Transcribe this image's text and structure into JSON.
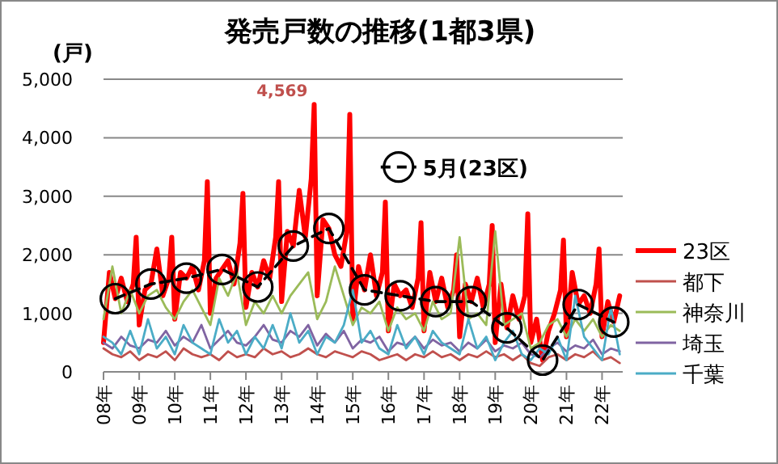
{
  "chart_data": {
    "type": "line",
    "title": "発売戸数の推移(1都3県)",
    "ylabel": "(戸)",
    "xlim": [
      "2008-01",
      "2022-08"
    ],
    "ylim": [
      0,
      5000
    ],
    "yticks": [
      {
        "value": 0,
        "label": "0"
      },
      {
        "value": 1000,
        "label": "1,000"
      },
      {
        "value": 2000,
        "label": "2,000"
      },
      {
        "value": 3000,
        "label": "3,000"
      },
      {
        "value": 4000,
        "label": "4,000"
      },
      {
        "value": 5000,
        "label": "5,000"
      }
    ],
    "xticks": [
      {
        "value": "2008-01",
        "label": "08年"
      },
      {
        "value": "2009-01",
        "label": "09年"
      },
      {
        "value": "2010-01",
        "label": "10年"
      },
      {
        "value": "2011-01",
        "label": "11年"
      },
      {
        "value": "2012-01",
        "label": "12年"
      },
      {
        "value": "2013-01",
        "label": "13年"
      },
      {
        "value": "2014-01",
        "label": "14年"
      },
      {
        "value": "2015-01",
        "label": "15年"
      },
      {
        "value": "2016-01",
        "label": "16年"
      },
      {
        "value": "2017-01",
        "label": "17年"
      },
      {
        "value": "2018-01",
        "label": "18年"
      },
      {
        "value": "2019-01",
        "label": "19年"
      },
      {
        "value": "2020-01",
        "label": "20年"
      },
      {
        "value": "2021-01",
        "label": "21年"
      },
      {
        "value": "2022-01",
        "label": "22年"
      }
    ],
    "grid": "y",
    "legend": "right",
    "series": [
      {
        "name": "23区",
        "color": "#ff0000",
        "x": [
          "2008-01",
          "2008-03",
          "2008-05",
          "2008-07",
          "2008-09",
          "2008-11",
          "2008-12",
          "2009-01",
          "2009-03",
          "2009-05",
          "2009-07",
          "2009-09",
          "2009-11",
          "2009-12",
          "2010-01",
          "2010-03",
          "2010-05",
          "2010-07",
          "2010-09",
          "2010-11",
          "2010-12",
          "2011-01",
          "2011-03",
          "2011-05",
          "2011-07",
          "2011-09",
          "2011-11",
          "2011-12",
          "2012-01",
          "2012-03",
          "2012-05",
          "2012-07",
          "2012-09",
          "2012-11",
          "2012-12",
          "2013-01",
          "2013-03",
          "2013-05",
          "2013-07",
          "2013-09",
          "2013-11",
          "2013-12",
          "2014-01",
          "2014-03",
          "2014-05",
          "2014-07",
          "2014-09",
          "2014-11",
          "2014-12",
          "2015-01",
          "2015-03",
          "2015-05",
          "2015-07",
          "2015-09",
          "2015-11",
          "2015-12",
          "2016-01",
          "2016-03",
          "2016-05",
          "2016-07",
          "2016-09",
          "2016-11",
          "2016-12",
          "2017-01",
          "2017-03",
          "2017-05",
          "2017-07",
          "2017-09",
          "2017-11",
          "2017-12",
          "2018-01",
          "2018-03",
          "2018-05",
          "2018-07",
          "2018-09",
          "2018-11",
          "2018-12",
          "2019-01",
          "2019-03",
          "2019-05",
          "2019-07",
          "2019-09",
          "2019-11",
          "2019-12",
          "2020-01",
          "2020-03",
          "2020-05",
          "2020-07",
          "2020-09",
          "2020-11",
          "2020-12",
          "2021-01",
          "2021-03",
          "2021-05",
          "2021-07",
          "2021-09",
          "2021-11",
          "2021-12",
          "2022-01",
          "2022-03",
          "2022-05",
          "2022-07"
        ],
        "values": [
          500,
          1700,
          1250,
          1600,
          1200,
          1500,
          2300,
          800,
          1400,
          1500,
          2100,
          1300,
          1600,
          2300,
          900,
          1700,
          1600,
          1800,
          1400,
          1900,
          3250,
          1000,
          1600,
          1750,
          1900,
          1500,
          2200,
          3050,
          1100,
          1700,
          1450,
          1900,
          1600,
          2300,
          3250,
          1200,
          2400,
          2150,
          3100,
          2300,
          3300,
          4569,
          1300,
          2600,
          2450,
          2000,
          1800,
          2400,
          4400,
          900,
          1800,
          1400,
          2000,
          1300,
          1700,
          2900,
          700,
          1500,
          1300,
          1400,
          1100,
          1600,
          2550,
          700,
          1700,
          1200,
          1600,
          1100,
          1400,
          2000,
          600,
          1500,
          1200,
          1600,
          1100,
          1500,
          2500,
          500,
          1500,
          750,
          1300,
          900,
          1300,
          2700,
          500,
          900,
          200,
          700,
          1000,
          1400,
          2250,
          600,
          1700,
          1150,
          1300,
          1000,
          1500,
          2100,
          600,
          1200,
          850,
          1300
        ],
        "value_labels": [
          null,
          null,
          null,
          null,
          null,
          null,
          null,
          null,
          null,
          null,
          null,
          null,
          null,
          null,
          null,
          null,
          null,
          null,
          null,
          null,
          null,
          null,
          null,
          null,
          null,
          null,
          null,
          null,
          null,
          null,
          null,
          null,
          null,
          null,
          null,
          null,
          null,
          null,
          null,
          null,
          null,
          "4,569",
          null,
          null,
          null,
          null,
          null,
          null,
          null,
          null,
          null,
          null,
          null,
          null,
          null,
          null,
          null,
          null,
          null,
          null,
          null,
          null,
          null,
          null,
          null,
          null,
          null,
          null,
          null,
          null,
          null,
          null,
          null,
          null,
          null,
          null,
          null,
          null,
          null,
          null,
          null,
          null,
          null,
          null,
          null,
          null,
          null,
          null,
          null,
          null,
          null,
          null,
          null,
          null,
          null,
          null,
          null,
          null,
          null,
          null,
          null,
          null
        ]
      },
      {
        "name": "都下",
        "color": "#c0504d",
        "x": [
          "2008-01",
          "2008-04",
          "2008-07",
          "2008-10",
          "2009-01",
          "2009-04",
          "2009-07",
          "2009-10",
          "2010-01",
          "2010-04",
          "2010-07",
          "2010-10",
          "2011-01",
          "2011-04",
          "2011-07",
          "2011-10",
          "2012-01",
          "2012-04",
          "2012-07",
          "2012-10",
          "2013-01",
          "2013-04",
          "2013-07",
          "2013-10",
          "2014-01",
          "2014-04",
          "2014-07",
          "2014-10",
          "2015-01",
          "2015-04",
          "2015-07",
          "2015-10",
          "2016-01",
          "2016-04",
          "2016-07",
          "2016-10",
          "2017-01",
          "2017-04",
          "2017-07",
          "2017-10",
          "2018-01",
          "2018-04",
          "2018-07",
          "2018-10",
          "2019-01",
          "2019-04",
          "2019-07",
          "2019-10",
          "2020-01",
          "2020-04",
          "2020-07",
          "2020-10",
          "2021-01",
          "2021-04",
          "2021-07",
          "2021-10",
          "2022-01",
          "2022-04",
          "2022-07"
        ],
        "values": [
          400,
          300,
          250,
          350,
          200,
          300,
          250,
          350,
          200,
          400,
          300,
          250,
          300,
          200,
          350,
          250,
          300,
          250,
          400,
          300,
          350,
          250,
          300,
          400,
          300,
          250,
          350,
          300,
          250,
          350,
          300,
          200,
          250,
          300,
          200,
          300,
          250,
          350,
          250,
          300,
          200,
          300,
          250,
          350,
          250,
          300,
          200,
          300,
          150,
          100,
          250,
          300,
          200,
          300,
          250,
          350,
          200,
          250,
          150
        ]
      },
      {
        "name": "神奈川",
        "color": "#9bbb59",
        "x": [
          "2008-01",
          "2008-04",
          "2008-07",
          "2008-10",
          "2009-01",
          "2009-04",
          "2009-07",
          "2009-10",
          "2010-01",
          "2010-04",
          "2010-07",
          "2010-10",
          "2011-01",
          "2011-04",
          "2011-07",
          "2011-10",
          "2012-01",
          "2012-04",
          "2012-07",
          "2012-10",
          "2013-01",
          "2013-04",
          "2013-07",
          "2013-10",
          "2014-01",
          "2014-04",
          "2014-07",
          "2014-10",
          "2015-01",
          "2015-04",
          "2015-07",
          "2015-10",
          "2016-01",
          "2016-04",
          "2016-07",
          "2016-10",
          "2017-01",
          "2017-04",
          "2017-07",
          "2017-10",
          "2018-01",
          "2018-04",
          "2018-07",
          "2018-10",
          "2019-01",
          "2019-04",
          "2019-07",
          "2019-10",
          "2020-01",
          "2020-04",
          "2020-07",
          "2020-10",
          "2021-01",
          "2021-04",
          "2021-07",
          "2021-10",
          "2022-01",
          "2022-04",
          "2022-07"
        ],
        "values": [
          900,
          1800,
          1000,
          1400,
          1000,
          1300,
          1400,
          1100,
          900,
          1200,
          1400,
          1100,
          800,
          1600,
          1300,
          1700,
          800,
          1200,
          1000,
          1300,
          1000,
          1300,
          1500,
          1700,
          900,
          1200,
          1800,
          1300,
          800,
          1100,
          1000,
          1200,
          700,
          1100,
          900,
          1000,
          700,
          1200,
          900,
          1000,
          2300,
          900,
          1000,
          800,
          2400,
          800,
          900,
          1000,
          400,
          500,
          800,
          900,
          600,
          900,
          700,
          900,
          600,
          800,
          700
        ]
      },
      {
        "name": "埼玉",
        "color": "#8064a2",
        "x": [
          "2008-01",
          "2008-04",
          "2008-07",
          "2008-10",
          "2009-01",
          "2009-04",
          "2009-07",
          "2009-10",
          "2010-01",
          "2010-04",
          "2010-07",
          "2010-10",
          "2011-01",
          "2011-04",
          "2011-07",
          "2011-10",
          "2012-01",
          "2012-04",
          "2012-07",
          "2012-10",
          "2013-01",
          "2013-04",
          "2013-07",
          "2013-10",
          "2014-01",
          "2014-04",
          "2014-07",
          "2014-10",
          "2015-01",
          "2015-04",
          "2015-07",
          "2015-10",
          "2016-01",
          "2016-04",
          "2016-07",
          "2016-10",
          "2017-01",
          "2017-04",
          "2017-07",
          "2017-10",
          "2018-01",
          "2018-04",
          "2018-07",
          "2018-10",
          "2019-01",
          "2019-04",
          "2019-07",
          "2019-10",
          "2020-01",
          "2020-04",
          "2020-07",
          "2020-10",
          "2021-01",
          "2021-04",
          "2021-07",
          "2021-10",
          "2022-01",
          "2022-04",
          "2022-07"
        ],
        "values": [
          500,
          400,
          600,
          450,
          400,
          550,
          500,
          700,
          450,
          600,
          500,
          800,
          400,
          550,
          700,
          500,
          450,
          600,
          800,
          550,
          500,
          700,
          600,
          800,
          450,
          650,
          500,
          700,
          400,
          550,
          500,
          600,
          350,
          500,
          450,
          600,
          400,
          550,
          450,
          500,
          350,
          500,
          400,
          550,
          350,
          450,
          400,
          500,
          300,
          250,
          400,
          500,
          350,
          450,
          400,
          550,
          300,
          400,
          350
        ]
      },
      {
        "name": "千葉",
        "color": "#4bacc6",
        "x": [
          "2008-01",
          "2008-04",
          "2008-07",
          "2008-10",
          "2009-01",
          "2009-04",
          "2009-07",
          "2009-10",
          "2010-01",
          "2010-04",
          "2010-07",
          "2010-10",
          "2011-01",
          "2011-04",
          "2011-07",
          "2011-10",
          "2012-01",
          "2012-04",
          "2012-07",
          "2012-10",
          "2013-01",
          "2013-04",
          "2013-07",
          "2013-10",
          "2014-01",
          "2014-04",
          "2014-07",
          "2014-10",
          "2015-01",
          "2015-04",
          "2015-07",
          "2015-10",
          "2016-01",
          "2016-04",
          "2016-07",
          "2016-10",
          "2017-01",
          "2017-04",
          "2017-07",
          "2017-10",
          "2018-01",
          "2018-04",
          "2018-07",
          "2018-10",
          "2019-01",
          "2019-04",
          "2019-07",
          "2019-10",
          "2020-01",
          "2020-04",
          "2020-07",
          "2020-10",
          "2021-01",
          "2021-04",
          "2021-07",
          "2021-10",
          "2022-01",
          "2022-04",
          "2022-07"
        ],
        "values": [
          600,
          500,
          300,
          700,
          300,
          900,
          400,
          600,
          300,
          800,
          500,
          400,
          300,
          900,
          500,
          700,
          300,
          600,
          400,
          800,
          400,
          1000,
          500,
          700,
          300,
          600,
          500,
          800,
          1400,
          500,
          700,
          400,
          300,
          800,
          400,
          600,
          300,
          700,
          500,
          400,
          300,
          900,
          400,
          600,
          200,
          500,
          700,
          300,
          200,
          400,
          300,
          600,
          200,
          1300,
          600,
          400,
          200,
          1100,
          300
        ]
      },
      {
        "name": "5月(23区)",
        "color": "#000000",
        "marker": "circle",
        "line_style": "dashed",
        "x": [
          "2008-05",
          "2009-05",
          "2010-05",
          "2011-05",
          "2012-05",
          "2013-05",
          "2014-05",
          "2015-05",
          "2016-05",
          "2017-05",
          "2018-05",
          "2019-05",
          "2020-05",
          "2021-05",
          "2022-05"
        ],
        "values": [
          1250,
          1500,
          1600,
          1750,
          1450,
          2150,
          2450,
          1400,
          1300,
          1200,
          1200,
          750,
          200,
          1150,
          850
        ]
      }
    ]
  }
}
